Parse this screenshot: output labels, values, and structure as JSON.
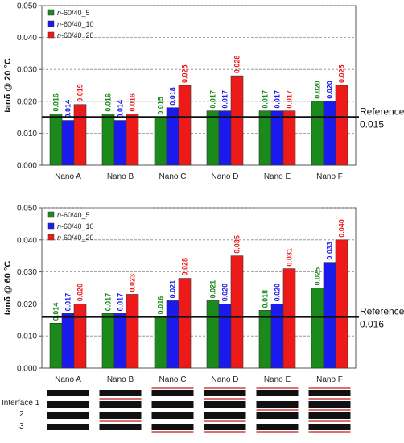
{
  "colors": {
    "s5": "#1a8a1a",
    "s10": "#1a1aee",
    "s20": "#ee1a1a",
    "ref": "#111111",
    "layer": "#111111",
    "interface": "#d04040"
  },
  "chart_data": [
    {
      "type": "bar",
      "ylabel": "tanδ @ 20 °C",
      "ylim": [
        0,
        0.05
      ],
      "yticks": [
        "0.000",
        "0.010",
        "0.020",
        "0.030",
        "0.040",
        "0.050"
      ],
      "grid": "horizontal dashed",
      "legend_placement": "top-left",
      "categories": [
        "Nano A",
        "Nano B",
        "Nano C",
        "Nano D",
        "Nano E",
        "Nano F"
      ],
      "series": [
        {
          "prefix": "n",
          "name": "-60/40_5",
          "values": [
            0.016,
            0.016,
            0.015,
            0.017,
            0.017,
            0.02
          ],
          "labels": [
            "0.016",
            "0.016",
            "0.015",
            "0.017",
            "0.017",
            "0.020"
          ]
        },
        {
          "prefix": "n",
          "name": "-60/40_10",
          "values": [
            0.014,
            0.014,
            0.018,
            0.017,
            0.017,
            0.02
          ],
          "labels": [
            "0.014",
            "0.014",
            "0.018",
            "0.017",
            "0.017",
            "0.020"
          ]
        },
        {
          "prefix": "n",
          "name": "-60/40_20",
          "values": [
            0.019,
            0.016,
            0.025,
            0.028,
            0.017,
            0.025
          ],
          "labels": [
            "0.019",
            "0.016",
            "0.025",
            "0.028",
            "0.017",
            "0.025"
          ]
        }
      ],
      "reference": {
        "value": 0.015,
        "label": "Reference",
        "value_label": "0.015"
      }
    },
    {
      "type": "bar",
      "ylabel": "tanδ @ 60 °C",
      "ylim": [
        0,
        0.05
      ],
      "yticks": [
        "0.000",
        "0.010",
        "0.020",
        "0.030",
        "0.040",
        "0.050"
      ],
      "grid": "horizontal dashed",
      "legend_placement": "top-left",
      "categories": [
        "Nano A",
        "Nano B",
        "Nano C",
        "Nano D",
        "Nano E",
        "Nano F"
      ],
      "series": [
        {
          "prefix": "n",
          "name": "-60/40_5",
          "values": [
            0.014,
            0.017,
            0.016,
            0.021,
            0.018,
            0.025
          ],
          "labels": [
            "0.014",
            "0.017",
            "0.016",
            "0.021",
            "0.018",
            "0.025"
          ]
        },
        {
          "prefix": "n",
          "name": "-60/40_10",
          "values": [
            0.017,
            0.017,
            0.021,
            0.02,
            0.02,
            0.033
          ],
          "labels": [
            "0.017",
            "0.017",
            "0.021",
            "0.020",
            "0.020",
            "0.033"
          ]
        },
        {
          "prefix": "n",
          "name": "-60/40_20",
          "values": [
            0.02,
            0.023,
            0.028,
            0.035,
            0.031,
            0.04
          ],
          "labels": [
            "0.020",
            "0.023",
            "0.028",
            "0.035",
            "0.031",
            "0.040"
          ]
        }
      ],
      "reference": {
        "value": 0.016,
        "label": "Reference",
        "value_label": "0.016"
      }
    }
  ],
  "interface_legend": {
    "labels": [
      "Interface 1",
      "2",
      "3"
    ],
    "patterns": [
      {
        "category": "Nano A",
        "interfaces": [
          false,
          false,
          false,
          false,
          false
        ]
      },
      {
        "category": "Nano B",
        "interfaces": [
          false,
          true,
          false,
          true,
          false
        ]
      },
      {
        "category": "Nano C",
        "interfaces": [
          true,
          false,
          false,
          false,
          true
        ]
      },
      {
        "category": "Nano D",
        "interfaces": [
          true,
          true,
          false,
          true,
          true
        ]
      },
      {
        "category": "Nano E",
        "interfaces": [
          true,
          false,
          true,
          false,
          true
        ]
      },
      {
        "category": "Nano F",
        "interfaces": [
          true,
          true,
          true,
          true,
          true
        ]
      }
    ]
  }
}
